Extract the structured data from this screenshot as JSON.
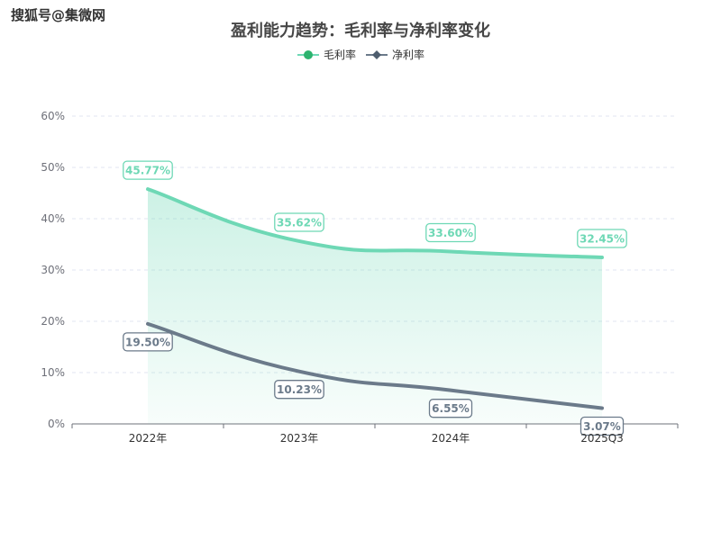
{
  "watermark": "搜狐号@集微网",
  "chart_data": {
    "type": "line",
    "title": "盈利能力趋势：毛利率与净利率变化",
    "categories": [
      "2022年",
      "2023年",
      "2024年",
      "2025Q3"
    ],
    "series": [
      {
        "name": "毛利率",
        "values": [
          45.77,
          35.62,
          33.6,
          32.45
        ],
        "labels": [
          "45.77%",
          "35.62%",
          "33.60%",
          "32.45%"
        ],
        "color": "#6ed8b5",
        "marker_color": "#2db36f",
        "area": true
      },
      {
        "name": "净利率",
        "values": [
          19.5,
          10.23,
          6.55,
          3.07
        ],
        "labels": [
          "19.50%",
          "10.23%",
          "6.55%",
          "3.07%"
        ],
        "color": "#6b7a8a",
        "marker_color": "#4e5d6e",
        "area": false
      }
    ],
    "yticks": [
      "0%",
      "10%",
      "20%",
      "30%",
      "40%",
      "50%",
      "60%"
    ],
    "ylim": [
      0,
      60
    ],
    "grid": true,
    "legend": "top-center"
  }
}
